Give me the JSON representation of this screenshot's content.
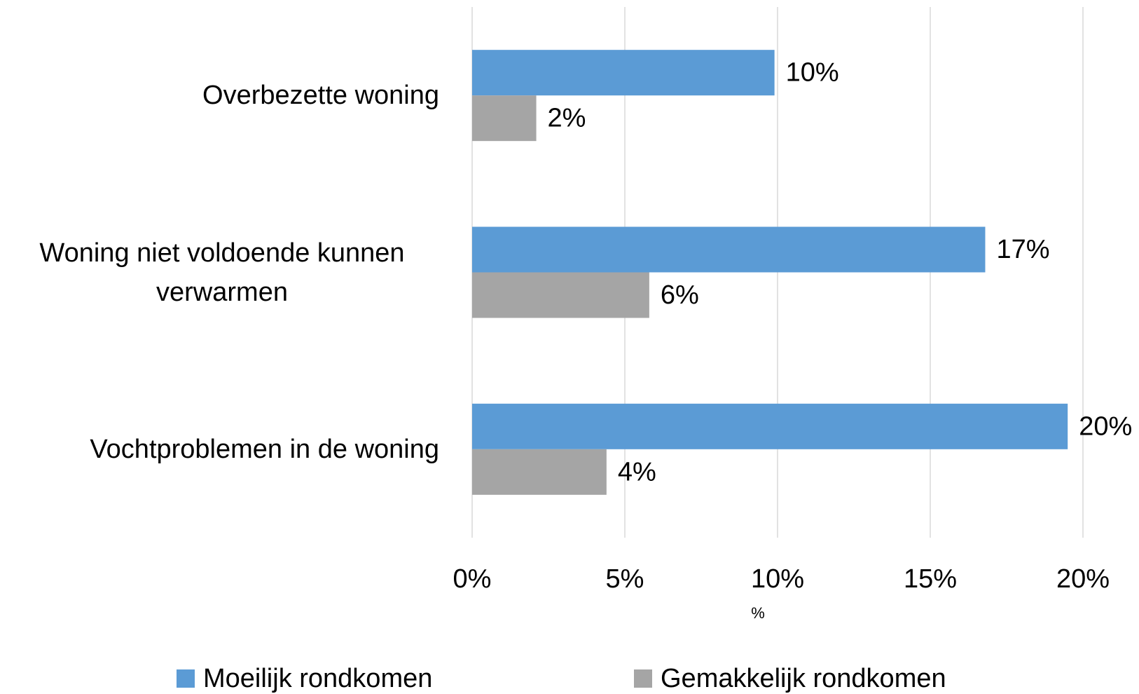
{
  "chart_data": {
    "type": "hbar",
    "categories": [
      "Overbezette woning",
      "Woning niet voldoende kunnen verwarmen",
      "Vochtproblemen in de woning"
    ],
    "series": [
      {
        "name": "Moeilijk rondkomen",
        "color": "#5b9bd5",
        "values": [
          9.9,
          16.8,
          19.5
        ],
        "value_labels": [
          "10%",
          "17%",
          "20%"
        ]
      },
      {
        "name": "Gemakkelijk rondkomen",
        "color": "#a5a5a5",
        "values": [
          2.1,
          5.8,
          4.4
        ],
        "value_labels": [
          "2%",
          "6%",
          "4%"
        ]
      }
    ],
    "xlabel": "%",
    "xlim": [
      0,
      20
    ],
    "xticks": [
      {
        "value": 0,
        "label": "0%"
      },
      {
        "value": 5,
        "label": "5%"
      },
      {
        "value": 10,
        "label": "10%"
      },
      {
        "value": 15,
        "label": "15%"
      },
      {
        "value": 20,
        "label": "20%"
      }
    ],
    "grid": true,
    "legend": "bottom"
  }
}
